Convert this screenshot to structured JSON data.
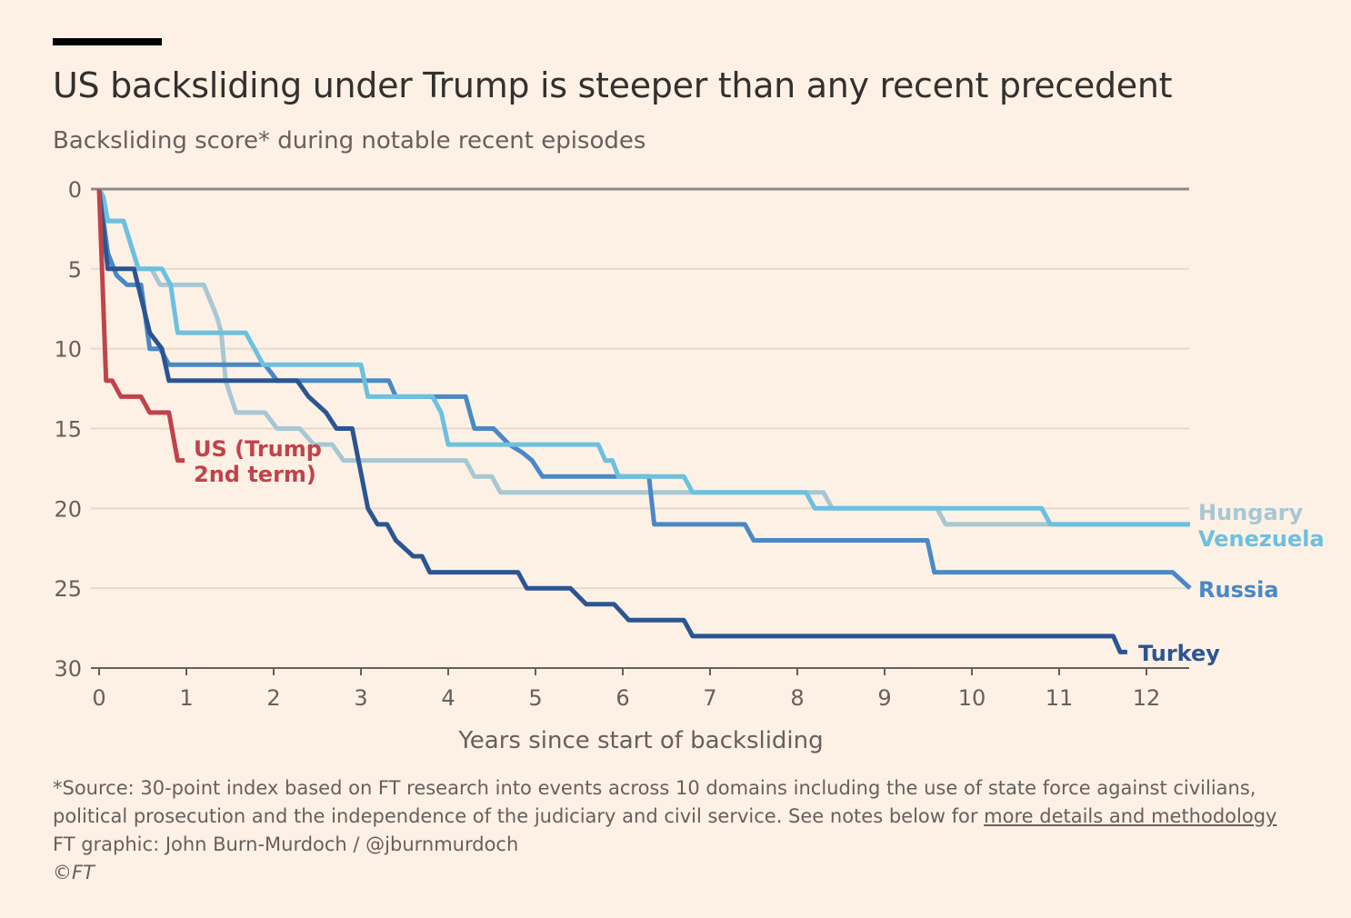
{
  "title": "US backsliding under Trump is steeper than any recent precedent",
  "subtitle": "Backsliding score* during notable recent episodes",
  "footer": {
    "source": "*Source: 30-point index based on FT research into events across 10 domains including the use of state force against civilians, political prosecution and the independence of the judiciary and civil service. See notes below for",
    "link": "more details and methodology",
    "credit": "FT graphic: John Burn-Murdoch / @jburnmurdoch",
    "copyright": "©FT"
  },
  "chart_data": {
    "type": "line",
    "title": "US backsliding under Trump is steeper than any recent precedent",
    "subtitle": "Backsliding score* during notable recent episodes",
    "xlabel": "Years since start of backsliding",
    "ylabel": "",
    "xlim": [
      0,
      12.5
    ],
    "ylim": [
      0,
      30
    ],
    "y_inverted": true,
    "xticks": [
      "0",
      "1",
      "2",
      "3",
      "4",
      "5",
      "6",
      "7",
      "8",
      "9",
      "10",
      "11",
      "12"
    ],
    "yticks": [
      "0",
      "5",
      "10",
      "15",
      "20",
      "25",
      "30"
    ],
    "grid": true,
    "legend": "direct labels at line ends",
    "series": [
      {
        "name": "Hungary",
        "label": "Hungary",
        "color": "#a7c7d3",
        "points": [
          [
            0,
            0
          ],
          [
            0.1,
            2
          ],
          [
            0.28,
            2
          ],
          [
            0.45,
            5
          ],
          [
            0.6,
            5
          ],
          [
            0.7,
            6
          ],
          [
            1.2,
            6
          ],
          [
            1.35,
            8
          ],
          [
            1.4,
            9
          ],
          [
            1.45,
            12
          ],
          [
            1.57,
            14
          ],
          [
            1.9,
            14
          ],
          [
            2.04,
            15
          ],
          [
            2.3,
            15
          ],
          [
            2.46,
            16
          ],
          [
            2.67,
            16
          ],
          [
            2.8,
            17
          ],
          [
            4.2,
            17
          ],
          [
            4.3,
            18
          ],
          [
            4.5,
            18
          ],
          [
            4.6,
            19
          ],
          [
            8.3,
            19
          ],
          [
            8.4,
            20
          ],
          [
            9.6,
            20
          ],
          [
            9.7,
            21
          ],
          [
            12.5,
            21
          ]
        ]
      },
      {
        "name": "Russia",
        "label": "Russia",
        "color": "#4a88c6",
        "points": [
          [
            0,
            0
          ],
          [
            0.1,
            4
          ],
          [
            0.2,
            5.4
          ],
          [
            0.32,
            6
          ],
          [
            0.48,
            6
          ],
          [
            0.58,
            10
          ],
          [
            0.7,
            10
          ],
          [
            0.8,
            11
          ],
          [
            1.9,
            11
          ],
          [
            2.04,
            12
          ],
          [
            3.32,
            12
          ],
          [
            3.4,
            13
          ],
          [
            4.2,
            13
          ],
          [
            4.3,
            15
          ],
          [
            4.52,
            15
          ],
          [
            4.7,
            16
          ],
          [
            4.85,
            16.5
          ],
          [
            4.96,
            17
          ],
          [
            5.08,
            18
          ],
          [
            6.3,
            18
          ],
          [
            6.36,
            21
          ],
          [
            7.4,
            21
          ],
          [
            7.5,
            22
          ],
          [
            9.49,
            22
          ],
          [
            9.57,
            24
          ],
          [
            12.3,
            24
          ],
          [
            12.5,
            25
          ]
        ]
      },
      {
        "name": "Venezuela",
        "label": "Venezuela",
        "color": "#6cc0e0",
        "points": [
          [
            0,
            0
          ],
          [
            0.05,
            0.5
          ],
          [
            0.1,
            2
          ],
          [
            0.28,
            2
          ],
          [
            0.45,
            5
          ],
          [
            0.72,
            5
          ],
          [
            0.82,
            6
          ],
          [
            0.9,
            9
          ],
          [
            1.68,
            9
          ],
          [
            1.88,
            11
          ],
          [
            3.0,
            11
          ],
          [
            3.08,
            13
          ],
          [
            3.82,
            13
          ],
          [
            3.92,
            14
          ],
          [
            4.0,
            16
          ],
          [
            5.72,
            16
          ],
          [
            5.8,
            17
          ],
          [
            5.88,
            17
          ],
          [
            5.95,
            18
          ],
          [
            6.7,
            18
          ],
          [
            6.8,
            19
          ],
          [
            8.1,
            19
          ],
          [
            8.2,
            20
          ],
          [
            10.8,
            20
          ],
          [
            10.9,
            21
          ],
          [
            12.5,
            21
          ]
        ]
      },
      {
        "name": "Turkey",
        "label": "Turkey",
        "color": "#2b5592",
        "points": [
          [
            0,
            0
          ],
          [
            0.1,
            5
          ],
          [
            0.4,
            5
          ],
          [
            0.58,
            9
          ],
          [
            0.72,
            10
          ],
          [
            0.8,
            12
          ],
          [
            2.27,
            12
          ],
          [
            2.4,
            13
          ],
          [
            2.6,
            14
          ],
          [
            2.72,
            15
          ],
          [
            2.9,
            15
          ],
          [
            3.08,
            20
          ],
          [
            3.19,
            21
          ],
          [
            3.3,
            21
          ],
          [
            3.4,
            22
          ],
          [
            3.6,
            23
          ],
          [
            3.7,
            23
          ],
          [
            3.79,
            24
          ],
          [
            4.8,
            24
          ],
          [
            4.9,
            25
          ],
          [
            5.4,
            25
          ],
          [
            5.58,
            26
          ],
          [
            5.9,
            26
          ],
          [
            6.07,
            27
          ],
          [
            6.7,
            27
          ],
          [
            6.8,
            28
          ],
          [
            11.62,
            28
          ],
          [
            11.7,
            29
          ],
          [
            11.78,
            29
          ]
        ]
      },
      {
        "name": "US (Trump 2nd term)",
        "label": "US (Trump 2nd term)",
        "color": "#c0434a",
        "points": [
          [
            0,
            0
          ],
          [
            0.08,
            12
          ],
          [
            0.15,
            12
          ],
          [
            0.25,
            13
          ],
          [
            0.48,
            13
          ],
          [
            0.58,
            14
          ],
          [
            0.8,
            14
          ],
          [
            0.9,
            17
          ],
          [
            0.98,
            17
          ]
        ]
      }
    ]
  }
}
